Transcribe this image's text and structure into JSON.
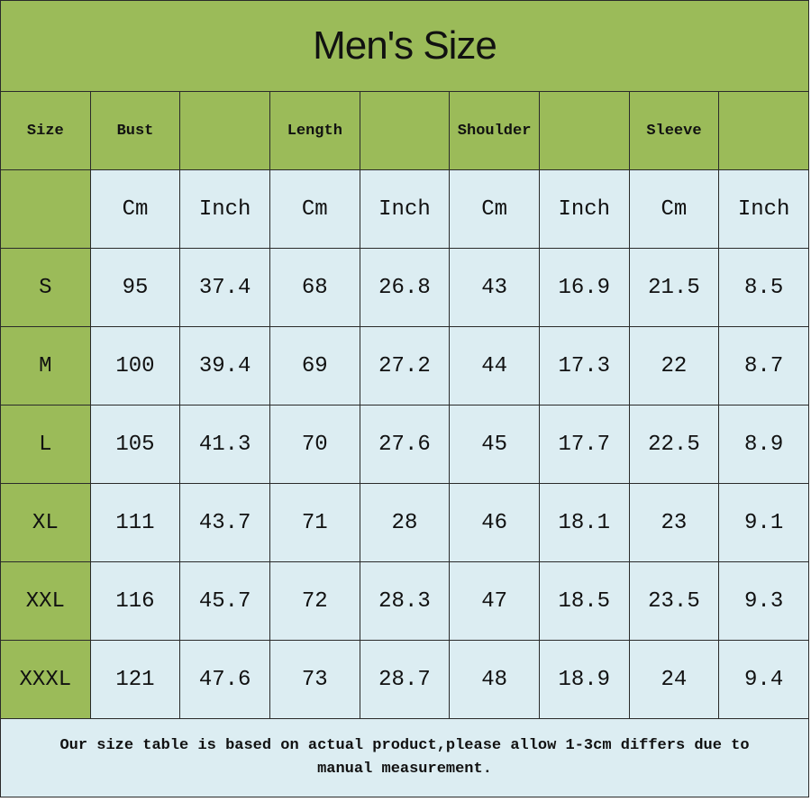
{
  "title": "Men's Size",
  "header": [
    "Size",
    "Bust",
    "Length",
    "Shoulder",
    "Sleeve"
  ],
  "units": [
    "Cm",
    "Inch",
    "Cm",
    "Inch",
    "Cm",
    "Inch",
    "Cm",
    "Inch"
  ],
  "rows": [
    [
      "S",
      "95",
      "37.4",
      "68",
      "26.8",
      "43",
      "16.9",
      "21.5",
      "8.5"
    ],
    [
      "M",
      "100",
      "39.4",
      "69",
      "27.2",
      "44",
      "17.3",
      "22",
      "8.7"
    ],
    [
      "L",
      "105",
      "41.3",
      "70",
      "27.6",
      "45",
      "17.7",
      "22.5",
      "8.9"
    ],
    [
      "XL",
      "111",
      "43.7",
      "71",
      "28",
      "46",
      "18.1",
      "23",
      "9.1"
    ],
    [
      "XXL",
      "116",
      "45.7",
      "72",
      "28.3",
      "47",
      "18.5",
      "23.5",
      "9.3"
    ],
    [
      "XXXL",
      "121",
      "47.6",
      "73",
      "28.7",
      "48",
      "18.9",
      "24",
      "9.4"
    ]
  ],
  "note": "Our size table is based on actual product,please allow 1-3cm differs due to manual measurement."
}
